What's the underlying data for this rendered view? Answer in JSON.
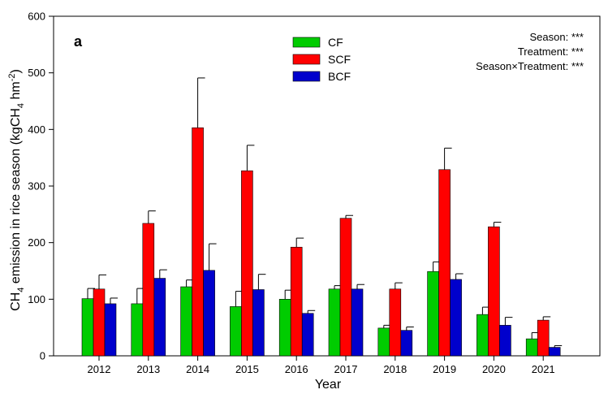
{
  "chart_data": {
    "type": "bar",
    "panel_label": "a",
    "categories": [
      "2012",
      "2013",
      "2014",
      "2015",
      "2016",
      "2017",
      "2018",
      "2019",
      "2020",
      "2021"
    ],
    "series": [
      {
        "name": "CF",
        "color": "#00cc00",
        "values": [
          101,
          92,
          122,
          87,
          100,
          118,
          49,
          149,
          73,
          30
        ],
        "errors": [
          18,
          27,
          12,
          27,
          16,
          6,
          5,
          17,
          13,
          11
        ]
      },
      {
        "name": "SCF",
        "color": "#ff0000",
        "values": [
          118,
          234,
          403,
          327,
          192,
          243,
          118,
          329,
          228,
          63
        ],
        "errors": [
          25,
          22,
          88,
          45,
          16,
          5,
          11,
          38,
          8,
          6
        ]
      },
      {
        "name": "BCF",
        "color": "#0000cc",
        "values": [
          92,
          137,
          151,
          117,
          75,
          118,
          45,
          135,
          54,
          15
        ],
        "errors": [
          10,
          15,
          47,
          27,
          5,
          8,
          6,
          10,
          14,
          3
        ]
      }
    ],
    "xlabel": "Year",
    "ylabel_parts": [
      "CH",
      "4",
      " emission in rice season (kgCH",
      "4",
      " hm",
      "-2",
      ")"
    ],
    "ylim": [
      0,
      600
    ],
    "yticks": [
      "0",
      "100",
      "200",
      "300",
      "400",
      "500",
      "600"
    ],
    "stats": [
      "Season: ***",
      "Treatment: ***",
      "Season×Treatment: ***"
    ],
    "legend_position": "top-center",
    "grid": false
  }
}
